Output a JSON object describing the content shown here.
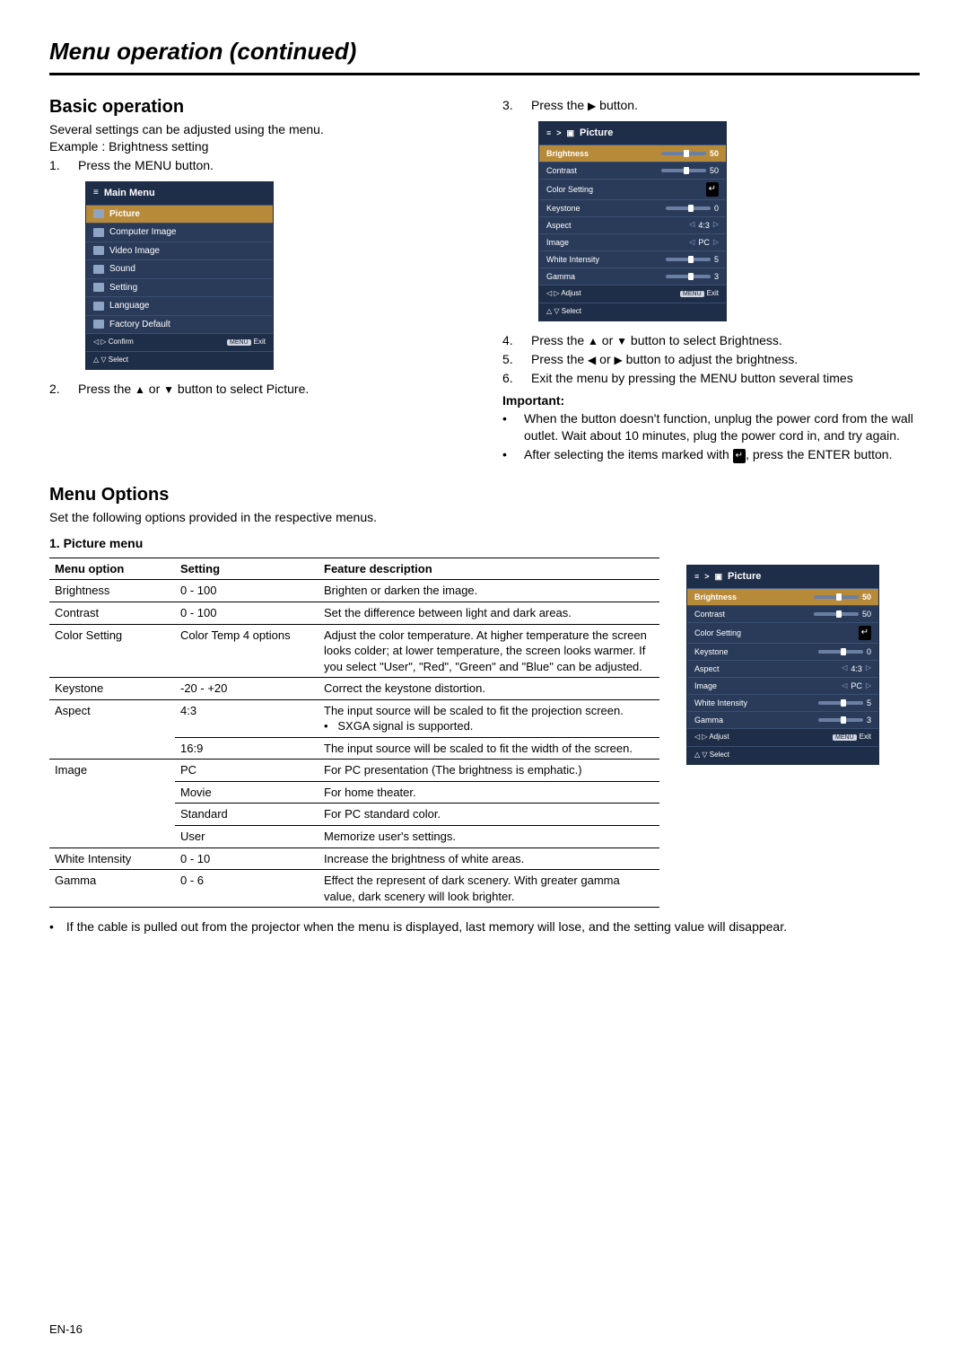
{
  "page_title": "Menu operation (continued)",
  "basic": {
    "heading": "Basic operation",
    "intro1": "Several settings can be adjusted using the menu.",
    "intro2": "Example : Brightness setting",
    "step1": "Press the MENU button.",
    "step2_pre": "Press the ",
    "step2_mid": " or ",
    "step2_post": " button to select Picture.",
    "step3_pre": "Press the ",
    "step3_post": " button.",
    "step4_pre": "Press the ",
    "step4_mid": " or ",
    "step4_post": " button to select Brightness.",
    "step5_pre": "Press the ",
    "step5_mid": " or ",
    "step5_post": " button to adjust the brightness.",
    "step6": "Exit the menu by pressing the MENU button several times"
  },
  "important": {
    "label": "Important:",
    "b1": "When the button doesn't function, unplug the power cord from the wall outlet. Wait about 10 minutes, plug the power cord in, and try again.",
    "b2_pre": "After selecting the items marked with ",
    "b2_post": ", press the ENTER button."
  },
  "osd_main": {
    "title": "Main Menu",
    "items": [
      "Picture",
      "Computer Image",
      "Video Image",
      "Sound",
      "Setting",
      "Language",
      "Factory Default"
    ],
    "foot_confirm": "Confirm",
    "foot_select": "Select",
    "foot_exit": "Exit",
    "menu_pill": "MENU"
  },
  "osd_pic": {
    "crumb": "Picture",
    "rows": [
      {
        "label": "Brightness",
        "type": "slider",
        "val": "50",
        "knob": 50,
        "sel": true
      },
      {
        "label": "Contrast",
        "type": "slider",
        "val": "50",
        "knob": 50
      },
      {
        "label": "Color Setting",
        "type": "enter",
        "val": ""
      },
      {
        "label": "Keystone",
        "type": "slider",
        "val": "0",
        "knob": 50
      },
      {
        "label": "Aspect",
        "type": "pick",
        "val": "4:3"
      },
      {
        "label": "Image",
        "type": "pick",
        "val": "PC"
      },
      {
        "label": "White Intensity",
        "type": "slider",
        "val": "5",
        "knob": 50
      },
      {
        "label": "Gamma",
        "type": "slider",
        "val": "3",
        "knob": 50
      }
    ],
    "foot_adjust": "Adjust",
    "foot_select": "Select",
    "foot_exit": "Exit",
    "menu_pill": "MENU"
  },
  "menu_options": {
    "heading": "Menu Options",
    "intro": "Set the following options provided in the respective menus.",
    "sub": "1. Picture menu",
    "headers": [
      "Menu option",
      "Setting",
      "Feature description"
    ],
    "rows": [
      {
        "opt": "Brightness",
        "set": "0 - 100",
        "desc": "Brighten or darken the image."
      },
      {
        "opt": "Contrast",
        "set": "0 - 100",
        "desc": "Set the difference between light and dark areas."
      },
      {
        "opt": "Color Setting",
        "set": "Color Temp 4 options",
        "desc": "Adjust the color temperature. At higher temperature the screen looks colder; at lower temperature, the screen looks warmer. If you select \"User\", \"Red\", \"Green\" and \"Blue\" can be adjusted."
      },
      {
        "opt": "Keystone",
        "set": "-20 - +20",
        "desc": "Correct the keystone distortion."
      }
    ],
    "aspect": {
      "opt": "Aspect",
      "r1_set": "4:3",
      "r1_desc_line1": "The input source will be scaled to fit the projection screen.",
      "r1_desc_bullet": "SXGA signal is supported.",
      "r2_set": "16:9",
      "r2_desc": "The input source will be scaled to fit the width of the screen."
    },
    "image": {
      "opt": "Image",
      "rows": [
        {
          "set": "PC",
          "desc": "For PC presentation (The brightness is emphatic.)"
        },
        {
          "set": "Movie",
          "desc": "For home theater."
        },
        {
          "set": "Standard",
          "desc": "For PC standard color."
        },
        {
          "set": "User",
          "desc": "Memorize user's settings."
        }
      ]
    },
    "tail": [
      {
        "opt": "White Intensity",
        "set": "0 - 10",
        "desc": "Increase the brightness of white areas."
      },
      {
        "opt": "Gamma",
        "set": "0 - 6",
        "desc": "Effect the represent of dark scenery. With greater gamma value, dark scenery will look brighter."
      }
    ],
    "footnote": "If the cable is pulled out from the projector when the menu is displayed, last memory will lose, and the setting value will disappear."
  },
  "page_num": "EN-16",
  "glyphs": {
    "up": "▲",
    "down": "▼",
    "left": "◀",
    "right": "▶",
    "enter": "↵",
    "menu_icon": "≡",
    "pic_icon": "▣",
    "gt": ">"
  }
}
